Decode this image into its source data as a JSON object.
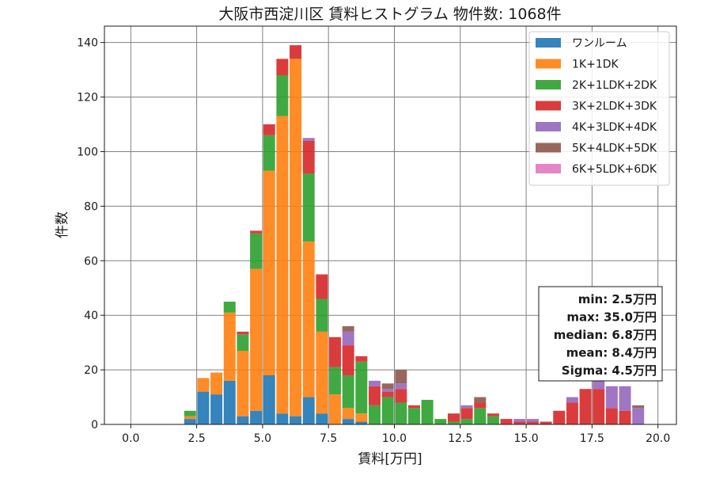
{
  "chart_data": {
    "type": "bar",
    "stacked": true,
    "title": "大阪市西淀川区 賃料ヒストグラム 物件数: 1068件",
    "xlabel": "賃料[万円]",
    "ylabel": "件数",
    "xlim": [
      -1.0,
      20.7
    ],
    "ylim": [
      0,
      146
    ],
    "xticks": [
      0.0,
      2.5,
      5.0,
      7.5,
      10.0,
      12.5,
      15.0,
      17.5,
      20.0
    ],
    "xtick_labels": [
      "0.0",
      "2.5",
      "5.0",
      "7.5",
      "10.0",
      "12.5",
      "15.0",
      "17.5",
      "20.0"
    ],
    "yticks": [
      0,
      20,
      40,
      60,
      80,
      100,
      120,
      140
    ],
    "ytick_labels": [
      "0",
      "20",
      "40",
      "60",
      "80",
      "100",
      "120",
      "140"
    ],
    "grid": true,
    "legend_position": "top-right",
    "bin_width": 0.5,
    "bins": [
      2.25,
      2.75,
      3.25,
      3.75,
      4.25,
      4.75,
      5.25,
      5.75,
      6.25,
      6.75,
      7.25,
      7.75,
      8.25,
      8.75,
      9.25,
      9.75,
      10.25,
      10.75,
      11.25,
      11.75,
      12.25,
      12.75,
      13.25,
      13.75,
      14.25,
      14.75,
      15.25,
      15.75,
      16.25,
      16.75,
      17.25,
      17.75,
      18.25,
      18.75,
      19.25
    ],
    "series": [
      {
        "name": "ワンルーム",
        "color": "#1f77b4",
        "values": [
          2,
          12,
          11,
          16,
          3,
          5,
          18,
          4,
          3,
          10,
          4,
          0,
          2,
          1,
          0,
          0,
          0,
          0,
          0,
          0,
          0,
          0,
          0,
          0,
          0,
          0,
          0,
          0,
          0,
          0,
          0,
          0,
          0,
          0,
          0
        ]
      },
      {
        "name": "1K+1DK",
        "color": "#ff7f0e",
        "values": [
          1,
          5,
          8,
          25,
          24,
          52,
          75,
          109,
          131,
          57,
          30,
          11,
          4,
          3,
          0,
          0,
          0,
          0,
          0,
          0,
          0,
          0,
          0,
          0,
          0,
          0,
          0,
          0,
          0,
          0,
          0,
          0,
          0,
          0,
          0
        ]
      },
      {
        "name": "2K+1LDK+2DK",
        "color": "#2ca02c",
        "values": [
          2,
          0,
          0,
          4,
          6,
          13,
          13,
          15,
          0,
          25,
          12,
          10,
          12,
          19,
          7,
          10,
          8,
          6,
          9,
          2,
          1,
          2,
          6,
          3,
          0,
          0,
          0,
          0,
          0,
          0,
          0,
          0,
          0,
          0,
          0
        ]
      },
      {
        "name": "3K+2LDK+3DK",
        "color": "#d62728",
        "values": [
          0,
          0,
          0,
          0,
          1,
          1,
          4,
          6,
          5,
          12,
          9,
          11,
          11,
          2,
          7,
          2,
          5,
          1,
          0,
          0,
          3,
          4,
          2,
          1,
          2,
          1,
          1,
          1,
          5,
          8,
          13,
          13,
          6,
          5,
          0
        ]
      },
      {
        "name": "4K+3LDK+4DK",
        "color": "#9467bd",
        "values": [
          0,
          0,
          0,
          0,
          0,
          0,
          0,
          0,
          0,
          1,
          0,
          0,
          5,
          0,
          2,
          1,
          2,
          0,
          0,
          0,
          0,
          1,
          0,
          0,
          0,
          1,
          1,
          0,
          0,
          2,
          0,
          4,
          8,
          9,
          6
        ]
      },
      {
        "name": "5K+4LDK+5DK",
        "color": "#8c564b",
        "values": [
          0,
          0,
          0,
          0,
          0,
          0,
          0,
          0,
          0,
          0,
          0,
          0,
          2,
          0,
          0,
          2,
          5,
          0,
          0,
          0,
          0,
          0,
          2,
          0,
          0,
          0,
          0,
          0,
          0,
          0,
          0,
          0,
          0,
          0,
          1
        ]
      },
      {
        "name": "6K+5LDK+6DK",
        "color": "#e377c2",
        "values": [
          0,
          0,
          0,
          0,
          0,
          0,
          0,
          0,
          0,
          0,
          0,
          0,
          0,
          0,
          0,
          0,
          0,
          0,
          0,
          0,
          0,
          0,
          0,
          0,
          0,
          0,
          0,
          0,
          0,
          0,
          0,
          0,
          0,
          0,
          0
        ]
      }
    ],
    "stats": [
      {
        "text": "min: 2.5万円"
      },
      {
        "text": "max: 35.0万円"
      },
      {
        "text": "median: 6.8万円"
      },
      {
        "text": "mean: 8.4万円"
      },
      {
        "text": "Sigma: 4.5万円"
      }
    ]
  }
}
